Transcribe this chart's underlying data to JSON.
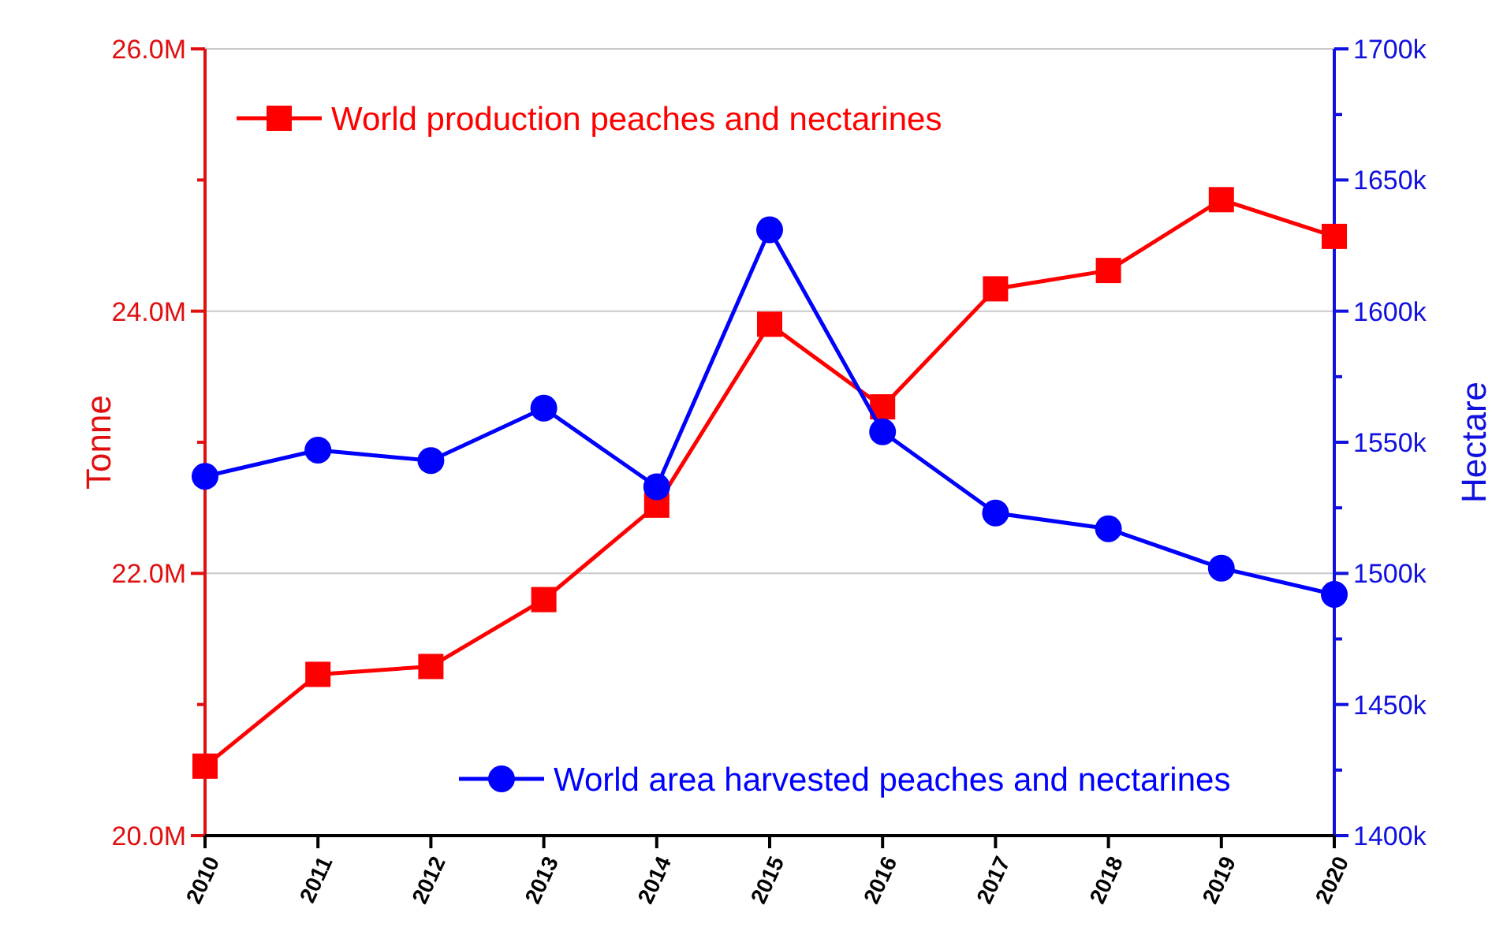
{
  "chart_data": {
    "type": "line",
    "ylabel": "Tonne",
    "y2label": "Hectare",
    "categories": [
      "2010",
      "2011",
      "2012",
      "2013",
      "2014",
      "2015",
      "2016",
      "2017",
      "2018",
      "2019",
      "2020"
    ],
    "series": [
      {
        "name": "World production peaches and nectarines",
        "color": "#ff0000",
        "marker": "square",
        "values": [
          20.53,
          21.23,
          21.29,
          21.8,
          22.52,
          23.9,
          23.27,
          24.17,
          24.31,
          24.85,
          24.57
        ]
      },
      {
        "name": "World area harvested peaches and nectarines",
        "color": "#0000ff",
        "marker": "circle",
        "axis": "y2",
        "values": [
          1537,
          1547,
          1543,
          1563,
          1533,
          1631,
          1554,
          1523,
          1517,
          1502,
          1492
        ]
      }
    ],
    "ylim": [
      20,
      26
    ],
    "yticks": [
      {
        "value": 20,
        "label": "20.0M"
      },
      {
        "value": 21,
        "label": null
      },
      {
        "value": 22,
        "label": "22.0M"
      },
      {
        "value": 23,
        "label": null
      },
      {
        "value": 24,
        "label": "24.0M"
      },
      {
        "value": 25,
        "label": null
      },
      {
        "value": 26,
        "label": "26.0M"
      }
    ],
    "y2lim": [
      1400,
      1700
    ],
    "y2ticks": [
      {
        "value": 1400,
        "label": "1400k"
      },
      {
        "value": 1425,
        "label": null
      },
      {
        "value": 1450,
        "label": "1450k"
      },
      {
        "value": 1475,
        "label": null
      },
      {
        "value": 1500,
        "label": "1500k"
      },
      {
        "value": 1525,
        "label": null
      },
      {
        "value": 1550,
        "label": "1550k"
      },
      {
        "value": 1575,
        "label": null
      },
      {
        "value": 1600,
        "label": "1600k"
      },
      {
        "value": 1625,
        "label": null
      },
      {
        "value": 1650,
        "label": "1650k"
      },
      {
        "value": 1675,
        "label": null
      },
      {
        "value": 1700,
        "label": "1700k"
      }
    ],
    "grid": "y",
    "legend": "left",
    "line_style": "solid"
  }
}
